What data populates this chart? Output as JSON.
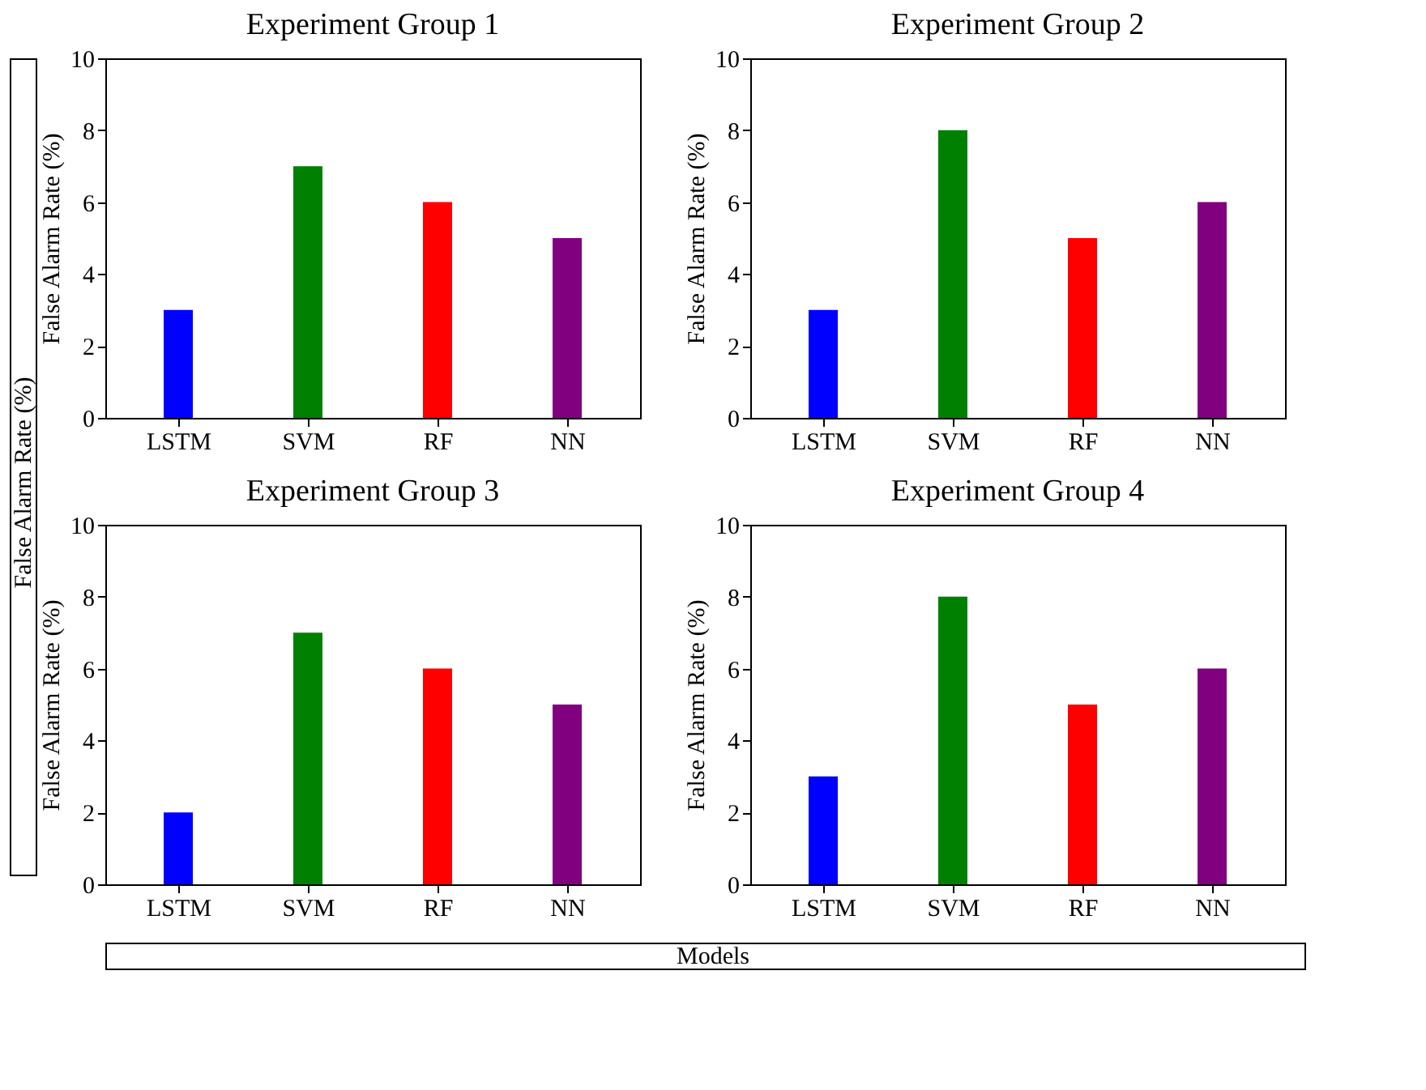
{
  "chart_data": [
    {
      "type": "bar",
      "title": "Experiment Group 1",
      "ylabel": "False Alarm Rate (%)",
      "categories": [
        "LSTM",
        "SVM",
        "RF",
        "NN"
      ],
      "values": [
        3,
        7,
        6,
        5
      ],
      "colors": [
        "#0000ff",
        "#008000",
        "#ff0000",
        "#800080"
      ],
      "ylim": [
        0,
        10
      ],
      "yticks": [
        0,
        2,
        4,
        6,
        8,
        10
      ],
      "grid": false,
      "annotations": [
        "False Alarm Rate (%)",
        "Models"
      ]
    },
    {
      "type": "bar",
      "title": "Experiment Group 2",
      "ylabel": "False Alarm Rate (%)",
      "categories": [
        "LSTM",
        "SVM",
        "RF",
        "NN"
      ],
      "values": [
        3,
        8,
        5,
        6
      ],
      "colors": [
        "#0000ff",
        "#008000",
        "#ff0000",
        "#800080"
      ],
      "ylim": [
        0,
        10
      ],
      "yticks": [
        0,
        2,
        4,
        6,
        8,
        10
      ],
      "grid": false
    },
    {
      "type": "bar",
      "title": "Experiment Group 3",
      "ylabel": "False Alarm Rate (%)",
      "categories": [
        "LSTM",
        "SVM",
        "RF",
        "NN"
      ],
      "values": [
        2,
        7,
        6,
        5
      ],
      "colors": [
        "#0000ff",
        "#008000",
        "#ff0000",
        "#800080"
      ],
      "ylim": [
        0,
        10
      ],
      "yticks": [
        0,
        2,
        4,
        6,
        8,
        10
      ],
      "grid": false
    },
    {
      "type": "bar",
      "title": "Experiment Group 4",
      "ylabel": "False Alarm Rate (%)",
      "categories": [
        "LSTM",
        "SVM",
        "RF",
        "NN"
      ],
      "values": [
        3,
        8,
        5,
        6
      ],
      "colors": [
        "#0000ff",
        "#008000",
        "#ff0000",
        "#800080"
      ],
      "ylim": [
        0,
        10
      ],
      "yticks": [
        0,
        2,
        4,
        6,
        8,
        10
      ],
      "grid": false
    }
  ]
}
